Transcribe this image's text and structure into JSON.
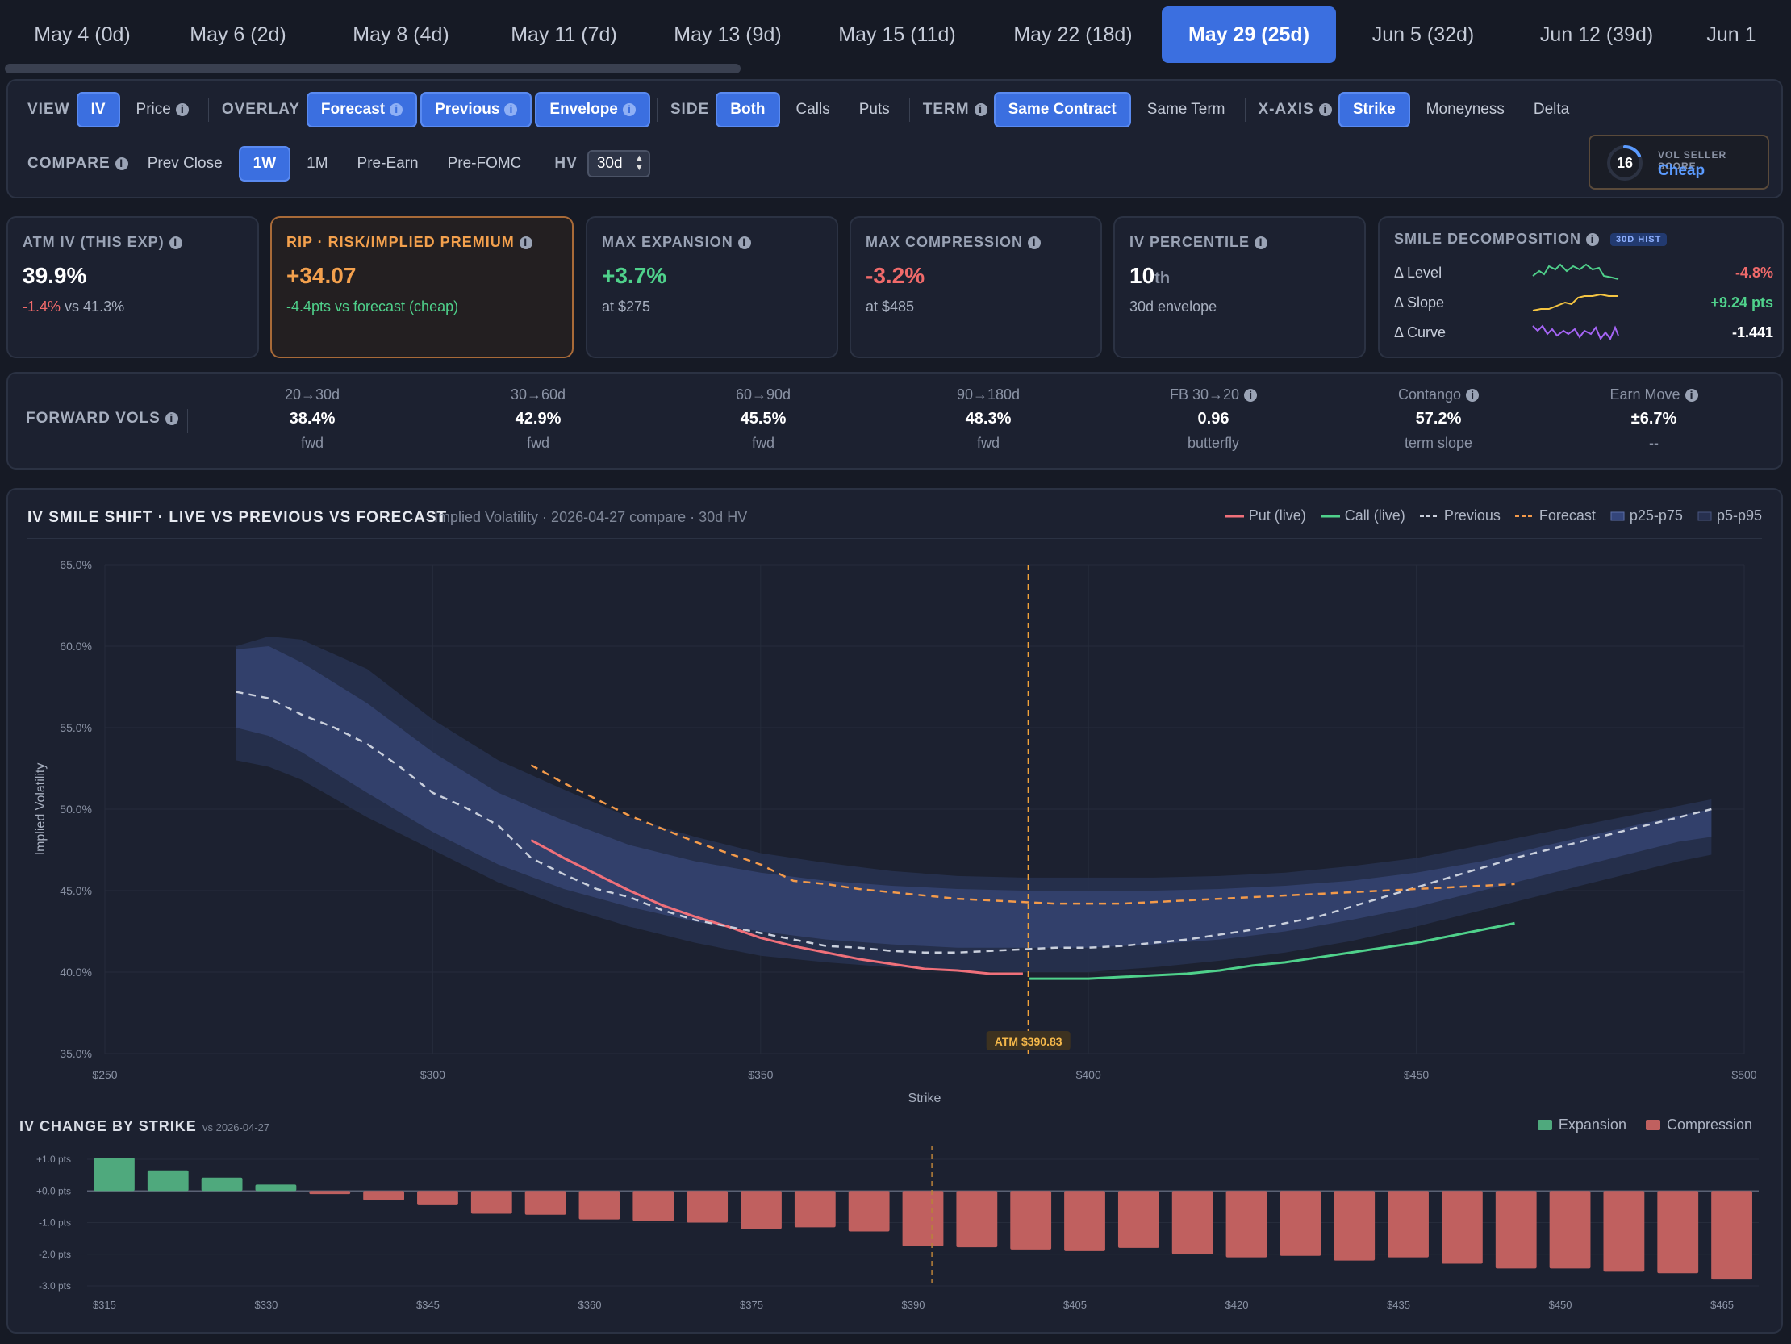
{
  "expiries": [
    "May 4 (0d)",
    "May 6 (2d)",
    "May 8 (4d)",
    "May 11 (7d)",
    "May 13 (9d)",
    "May 15 (11d)",
    "May 22 (18d)",
    "May 29 (25d)",
    "Jun 5 (32d)",
    "Jun 12 (39d)",
    "Jun 1"
  ],
  "active_expiry": "May 29 (25d)",
  "controls": {
    "view": {
      "label": "VIEW",
      "options": [
        "IV",
        "Price"
      ],
      "selected": "IV"
    },
    "overlay": {
      "label": "OVERLAY",
      "options": [
        "Forecast",
        "Previous",
        "Envelope"
      ],
      "selected": [
        "Forecast",
        "Previous",
        "Envelope"
      ]
    },
    "side": {
      "label": "SIDE",
      "options": [
        "Both",
        "Calls",
        "Puts"
      ],
      "selected": "Both"
    },
    "term": {
      "label": "TERM",
      "options": [
        "Same Contract",
        "Same Term"
      ],
      "selected": "Same Contract"
    },
    "xaxis": {
      "label": "X-AXIS",
      "options": [
        "Strike",
        "Moneyness",
        "Delta"
      ],
      "selected": "Strike"
    },
    "compare": {
      "label": "COMPARE",
      "options": [
        "Prev Close",
        "1W",
        "1M",
        "Pre-Earn",
        "Pre-FOMC"
      ],
      "selected": "1W"
    },
    "hv": {
      "label": "HV",
      "value": "30d"
    }
  },
  "vol_seller_score": {
    "value": "16",
    "label": "VOL SELLER SCORE",
    "rating": "Cheap"
  },
  "cards": {
    "atm_iv": {
      "title": "ATM IV (THIS EXP)",
      "value": "39.9%",
      "change": "-1.4%",
      "sub": "vs 41.3%"
    },
    "rip": {
      "title": "RIP · RISK/IMPLIED PREMIUM",
      "value": "+34.07",
      "sub": "-4.4pts vs forecast (cheap)"
    },
    "max_expansion": {
      "title": "MAX EXPANSION",
      "value": "+3.7%",
      "sub": "at $275"
    },
    "max_compression": {
      "title": "MAX COMPRESSION",
      "value": "-3.2%",
      "sub": "at $485"
    },
    "iv_percentile": {
      "title": "IV PERCENTILE",
      "value": "10",
      "suffix": "th",
      "sub": "30d envelope"
    },
    "smile": {
      "title": "SMILE DECOMPOSITION",
      "badge": "30D HIST",
      "rows": [
        {
          "label": "Δ Level",
          "value": "-4.8%",
          "color": "#4fd18b"
        },
        {
          "label": "Δ Slope",
          "value": "+9.24 pts",
          "color": "#f5c542"
        },
        {
          "label": "Δ Curve",
          "value": "-1.441",
          "color": "#a564f5"
        }
      ]
    }
  },
  "forward_vols": {
    "title": "FORWARD VOLS",
    "items": [
      {
        "h": "20→30d",
        "v": "38.4%",
        "s": "fwd",
        "info": false
      },
      {
        "h": "30→60d",
        "v": "42.9%",
        "s": "fwd",
        "info": false
      },
      {
        "h": "60→90d",
        "v": "45.5%",
        "s": "fwd",
        "info": false
      },
      {
        "h": "90→180d",
        "v": "48.3%",
        "s": "fwd",
        "info": false
      },
      {
        "h": "FB 30→20",
        "v": "0.96",
        "s": "butterfly",
        "info": true
      },
      {
        "h": "Contango",
        "v": "57.2%",
        "s": "term slope",
        "info": true
      },
      {
        "h": "Earn Move",
        "v": "±6.7%",
        "s": "--",
        "info": true
      }
    ]
  },
  "smile_chart": {
    "title": "IV SMILE SHIFT · LIVE VS PREVIOUS VS FORECAST",
    "subtitle": "Implied Volatility · 2026-04-27 compare · 30d HV",
    "legend": [
      "Put (live)",
      "Call (live)",
      "Previous",
      "Forecast",
      "p25-p75",
      "p5-p95"
    ],
    "atm_label": "ATM $390.83"
  },
  "colors": {
    "put": "#f0707a",
    "call": "#4fd18b",
    "previous": "#c9cfdc",
    "forecast": "#f39a4a",
    "band": "#3a4a78",
    "accent": "#3b6fe0",
    "expansion": "#4fa97d",
    "compression": "#c0605f"
  },
  "chart_data": [
    {
      "type": "line",
      "title": "IV SMILE SHIFT · LIVE VS PREVIOUS VS FORECAST",
      "xlabel": "Strike",
      "ylabel": "Implied Volatility",
      "xlim": [
        250,
        500
      ],
      "ylim": [
        35,
        65
      ],
      "x_ticks": [
        "$250",
        "$300",
        "$350",
        "$400",
        "$450",
        "$500"
      ],
      "y_ticks": [
        "35.0%",
        "40.0%",
        "45.0%",
        "50.0%",
        "55.0%",
        "60.0%",
        "65.0%"
      ],
      "atm": 390.83,
      "series": [
        {
          "name": "Put (live)",
          "x": [
            315,
            320,
            325,
            330,
            335,
            340,
            345,
            350,
            355,
            360,
            365,
            370,
            375,
            380,
            385,
            390
          ],
          "y": [
            48.1,
            47.0,
            46.0,
            45.0,
            44.1,
            43.4,
            42.8,
            42.1,
            41.6,
            41.2,
            40.8,
            40.5,
            40.2,
            40.1,
            39.9,
            39.9
          ]
        },
        {
          "name": "Call (live)",
          "x": [
            391,
            395,
            400,
            405,
            410,
            415,
            420,
            425,
            430,
            435,
            440,
            445,
            450,
            455,
            460,
            465
          ],
          "y": [
            39.6,
            39.6,
            39.6,
            39.7,
            39.8,
            39.9,
            40.1,
            40.4,
            40.6,
            40.9,
            41.2,
            41.5,
            41.8,
            42.2,
            42.6,
            43.0
          ]
        },
        {
          "name": "Previous",
          "x": [
            270,
            275,
            280,
            285,
            290,
            295,
            300,
            305,
            310,
            315,
            320,
            325,
            330,
            335,
            340,
            345,
            350,
            355,
            360,
            365,
            370,
            375,
            380,
            385,
            390,
            395,
            400,
            405,
            410,
            415,
            420,
            425,
            430,
            435,
            440,
            445,
            450,
            455,
            460,
            465,
            470,
            475,
            480,
            485,
            490,
            495
          ],
          "y": [
            57.2,
            56.8,
            55.8,
            55.0,
            54.0,
            52.6,
            51.0,
            50.1,
            49.0,
            47.0,
            46.0,
            45.1,
            44.6,
            43.8,
            43.2,
            42.8,
            42.4,
            42.0,
            41.6,
            41.5,
            41.3,
            41.2,
            41.2,
            41.3,
            41.4,
            41.5,
            41.5,
            41.6,
            41.8,
            42.0,
            42.3,
            42.6,
            43.0,
            43.4,
            44.0,
            44.6,
            45.2,
            45.8,
            46.4,
            47.0,
            47.5,
            48.0,
            48.5,
            49.0,
            49.5,
            50.0
          ]
        },
        {
          "name": "Forecast",
          "x": [
            315,
            320,
            325,
            330,
            335,
            340,
            345,
            350,
            355,
            360,
            365,
            370,
            375,
            380,
            385,
            390,
            395,
            400,
            405,
            410,
            415,
            420,
            425,
            430,
            435,
            440,
            445,
            450,
            455,
            460,
            465
          ],
          "y": [
            52.7,
            51.6,
            50.6,
            49.6,
            48.8,
            48.0,
            47.3,
            46.6,
            45.6,
            45.4,
            45.1,
            44.9,
            44.7,
            44.5,
            44.4,
            44.3,
            44.2,
            44.2,
            44.2,
            44.3,
            44.4,
            44.5,
            44.6,
            44.7,
            44.8,
            44.9,
            45.0,
            45.1,
            45.2,
            45.3,
            45.4
          ]
        }
      ],
      "bands": [
        {
          "name": "p25-p75",
          "x": [
            270,
            275,
            280,
            290,
            300,
            310,
            320,
            330,
            340,
            350,
            360,
            370,
            380,
            390,
            400,
            410,
            420,
            430,
            440,
            450,
            460,
            470,
            480,
            490,
            495
          ],
          "lo": [
            55.0,
            54.5,
            53.5,
            51.0,
            48.6,
            46.6,
            45.1,
            44.0,
            43.1,
            42.5,
            42.0,
            41.7,
            41.5,
            41.5,
            41.5,
            41.7,
            42.0,
            42.5,
            43.2,
            44.0,
            45.0,
            46.0,
            47.0,
            48.0,
            48.3
          ],
          "hi": [
            59.8,
            60.0,
            59.0,
            56.5,
            53.5,
            51.0,
            49.3,
            47.8,
            46.8,
            46.1,
            45.6,
            45.3,
            45.1,
            45.0,
            45.0,
            45.0,
            45.1,
            45.3,
            45.6,
            46.1,
            46.8,
            47.8,
            48.7,
            49.6,
            50.0
          ]
        },
        {
          "name": "p5-p95",
          "x": [
            270,
            275,
            280,
            290,
            300,
            310,
            320,
            330,
            340,
            350,
            360,
            370,
            380,
            390,
            400,
            410,
            420,
            430,
            440,
            450,
            460,
            470,
            480,
            490,
            495
          ],
          "lo": [
            53.0,
            52.6,
            51.8,
            49.5,
            47.5,
            45.5,
            44.0,
            42.8,
            41.8,
            41.0,
            40.6,
            40.3,
            40.1,
            40.0,
            40.0,
            40.3,
            40.7,
            41.2,
            41.9,
            42.8,
            43.8,
            44.8,
            45.8,
            46.8,
            47.2
          ],
          "hi": [
            60.0,
            60.6,
            60.4,
            58.6,
            55.5,
            53.0,
            51.2,
            49.5,
            48.3,
            47.3,
            46.7,
            46.2,
            45.9,
            45.8,
            45.8,
            45.8,
            45.9,
            46.1,
            46.5,
            47.0,
            47.8,
            48.6,
            49.4,
            50.2,
            50.6
          ]
        }
      ]
    },
    {
      "type": "bar",
      "title": "IV CHANGE BY STRIKE",
      "subtitle": "vs 2026-04-27",
      "legend": [
        "Expansion",
        "Compression"
      ],
      "ylim": [
        -3.0,
        1.0
      ],
      "y_ticks": [
        "+1.0 pts",
        "+0.0 pts",
        "-1.0 pts",
        "-2.0 pts",
        "-3.0 pts"
      ],
      "x_ticks": [
        "$315",
        "$330",
        "$345",
        "$360",
        "$375",
        "$390",
        "$405",
        "$420",
        "$435",
        "$450",
        "$465"
      ],
      "categories": [
        315,
        320,
        325,
        330,
        335,
        340,
        345,
        350,
        355,
        360,
        365,
        370,
        375,
        380,
        385,
        390,
        395,
        400,
        405,
        410,
        415,
        420,
        425,
        430,
        435,
        440,
        445,
        450,
        455,
        460,
        465
      ],
      "values": [
        1.05,
        0.65,
        0.42,
        0.2,
        -0.1,
        -0.3,
        -0.45,
        -0.72,
        -0.75,
        -0.9,
        -0.95,
        -1.0,
        -1.2,
        -1.15,
        -1.28,
        -1.75,
        -1.78,
        -1.85,
        -1.9,
        -1.8,
        -2.0,
        -2.1,
        -2.05,
        -2.2,
        -2.1,
        -2.3,
        -2.45,
        -2.45,
        -2.55,
        -2.6,
        -2.8
      ],
      "atm": 390.83
    }
  ]
}
